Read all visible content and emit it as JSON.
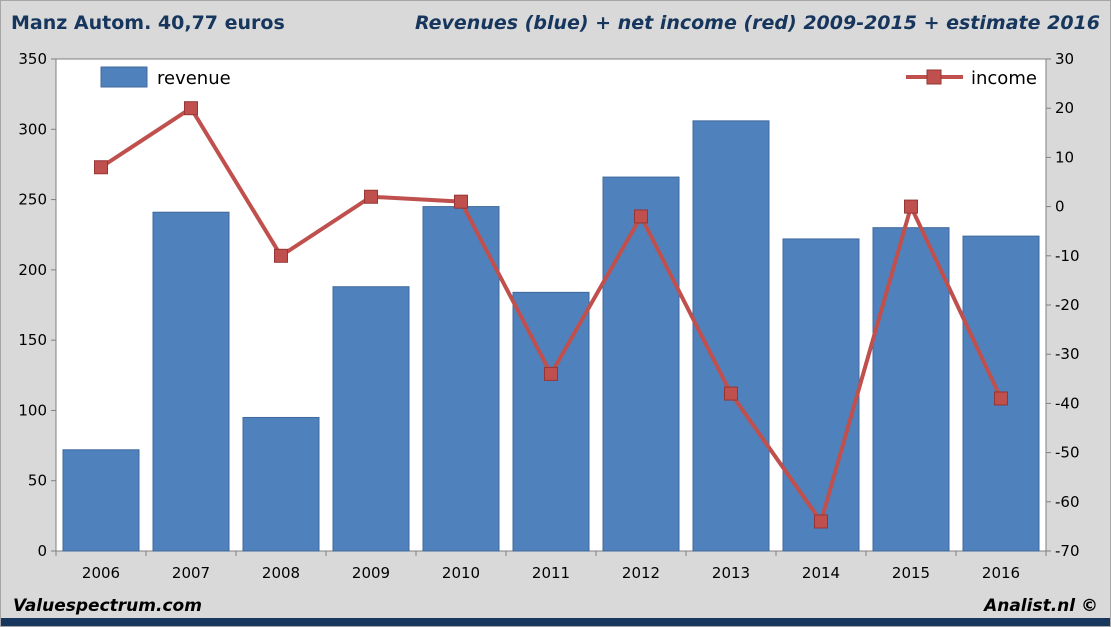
{
  "header": {
    "title_left": "Manz Autom. 40,77 euros",
    "title_right": "Revenues (blue) + net income (red) 2009-2015 + estimate 2016"
  },
  "footer": {
    "left": "Valuespectrum.com",
    "right": "Analist.nl ©"
  },
  "legend": {
    "revenue": "revenue",
    "income": "income"
  },
  "colors": {
    "bar": "#4f81bd",
    "bar_border": "#40699c",
    "line": "#c0504d",
    "line_border": "#963634",
    "title": "#17365d",
    "background": "#d9d9d9",
    "plot_bg": "#ffffff",
    "axis": "#808080",
    "strip": "#17375e",
    "label": "#000000"
  },
  "chart_data": {
    "type": "bar+line",
    "title": "Manz Autom. revenues and net income 2009-2015 + estimate 2016",
    "categories": [
      "2006",
      "2007",
      "2008",
      "2009",
      "2010",
      "2011",
      "2012",
      "2013",
      "2014",
      "2015",
      "2016"
    ],
    "series": [
      {
        "name": "revenue",
        "type": "bar",
        "axis": "left",
        "color": "#4f81bd",
        "values": [
          72,
          241,
          95,
          188,
          245,
          184,
          266,
          306,
          222,
          230,
          224
        ]
      },
      {
        "name": "income",
        "type": "line",
        "axis": "right",
        "color": "#c0504d",
        "values": [
          8,
          20,
          -10,
          2,
          1,
          -34,
          -2,
          -38,
          -64,
          0,
          -39
        ]
      }
    ],
    "left_axis": {
      "min": 0,
      "max": 350,
      "step": 50,
      "ticks": [
        0,
        50,
        100,
        150,
        200,
        250,
        300,
        350
      ]
    },
    "right_axis": {
      "min": -70,
      "max": 30,
      "step": 10,
      "ticks": [
        30,
        20,
        10,
        0,
        -10,
        -20,
        -30,
        -40,
        -50,
        -60,
        -70
      ]
    },
    "grid": false,
    "legend_position": "top-inside",
    "xlabel": "",
    "ylabel_left": "",
    "ylabel_right": ""
  }
}
